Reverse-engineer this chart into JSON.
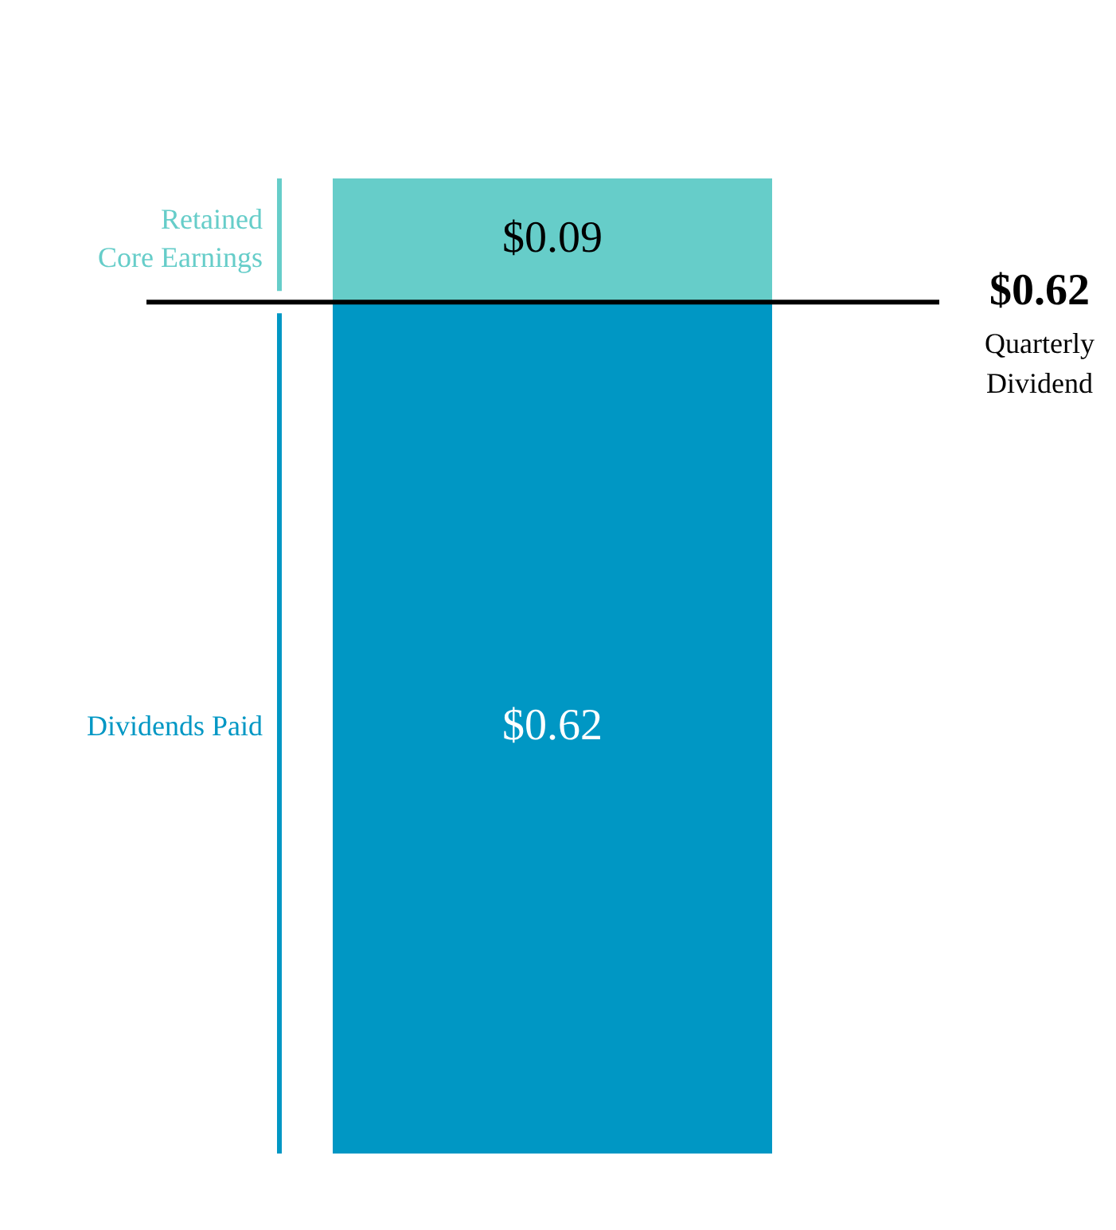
{
  "chart_data": {
    "type": "bar",
    "stacked": true,
    "categories": [
      null
    ],
    "series": [
      {
        "name": "Dividends Paid",
        "color": "#0097c4",
        "values": [
          0.62
        ],
        "value_labels": [
          "$0.62"
        ]
      },
      {
        "name": "Retained Core Earnings",
        "color": "#66cdc9",
        "values": [
          0.09
        ],
        "value_labels": [
          "$0.09"
        ]
      }
    ],
    "ylim": [
      0,
      0.71
    ],
    "ref_lines": [
      {
        "axis": "y",
        "value": 0.62,
        "label": "$0.62 Quarterly Dividend",
        "color": "#000000"
      }
    ]
  }
}
